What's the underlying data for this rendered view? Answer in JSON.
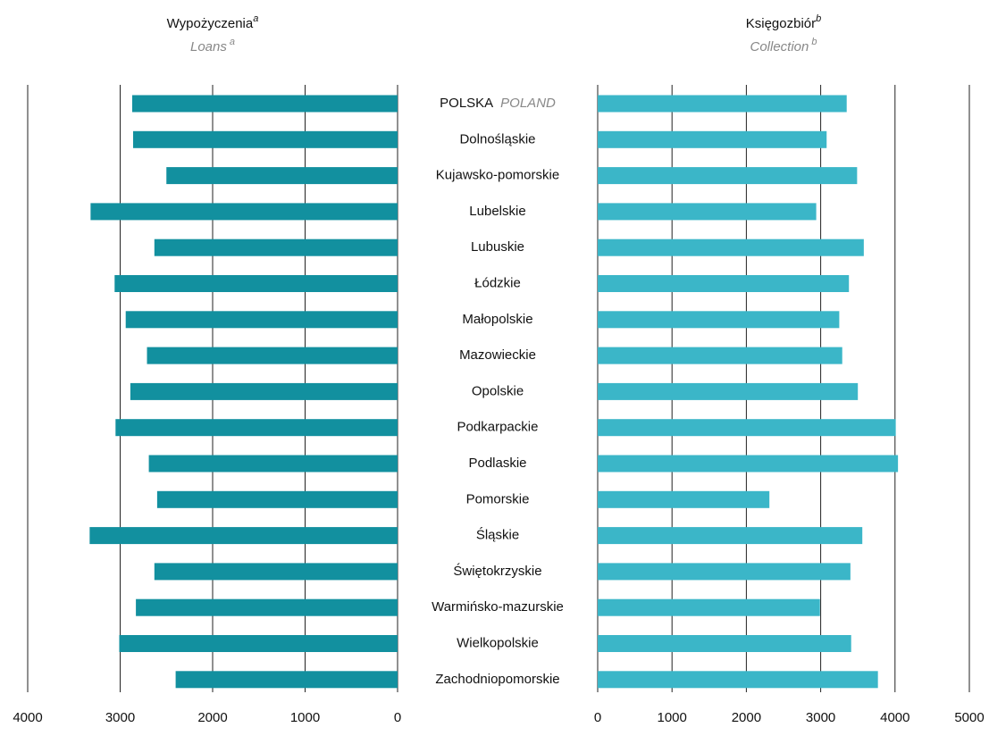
{
  "chart_data": [
    {
      "type": "bar",
      "orientation": "horizontal",
      "reversed": true,
      "title": "Wypożyczenia",
      "title_sup": "a",
      "subtitle": "Loans",
      "subtitle_sup": "a",
      "categories": [
        "POLSKA",
        "Dolnośląskie",
        "Kujawsko-pomorskie",
        "Lubelskie",
        "Lubuskie",
        "Łódzkie",
        "Małopolskie",
        "Mazowieckie",
        "Opolskie",
        "Podkarpackie",
        "Podlaskie",
        "Pomorskie",
        "Śląskie",
        "Świętokrzyskie",
        "Warmińsko-mazurskie",
        "Wielkopolskie",
        "Zachodniopomorskie"
      ],
      "first_category_translation": "POLAND",
      "values": [
        2870,
        2860,
        2500,
        3320,
        2630,
        3060,
        2940,
        2710,
        2890,
        3050,
        2690,
        2600,
        3330,
        2630,
        2830,
        3010,
        2400
      ],
      "color": "#12909f",
      "xlim": [
        0,
        4000
      ],
      "xticks": [
        0,
        1000,
        2000,
        3000,
        4000
      ],
      "grid": true
    },
    {
      "type": "bar",
      "orientation": "horizontal",
      "reversed": false,
      "title": "Księgozbiór",
      "title_sup": "b",
      "subtitle": "Collection",
      "subtitle_sup": "b",
      "values": [
        3350,
        3080,
        3490,
        2940,
        3580,
        3380,
        3250,
        3290,
        3500,
        4010,
        4040,
        2310,
        3560,
        3400,
        2990,
        3410,
        3770
      ],
      "color": "#3bb6c8",
      "xlim": [
        0,
        5000
      ],
      "xticks": [
        0,
        1000,
        2000,
        3000,
        4000,
        5000
      ],
      "grid": true
    }
  ]
}
